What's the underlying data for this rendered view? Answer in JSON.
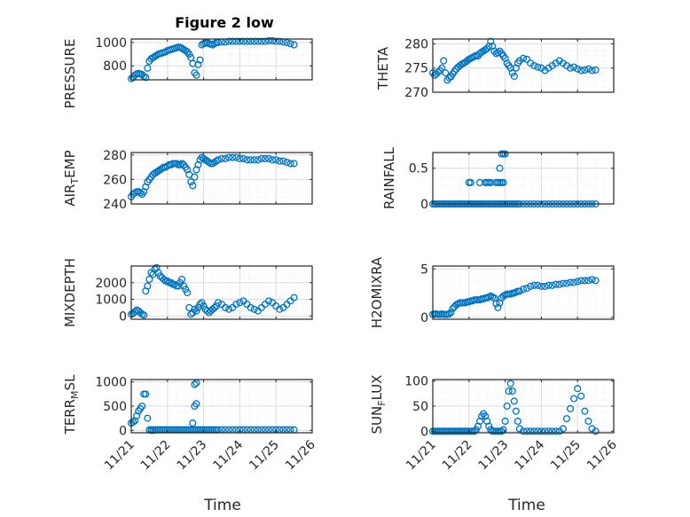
{
  "figure": {
    "title": "Figure 2 low",
    "xlabel": "Time"
  },
  "chart_data": [
    {
      "type": "scatter",
      "title": "Figure 2 low",
      "ylabel": "PRESSURE",
      "ylim": [
        680,
        1030
      ],
      "yticks": [
        "800",
        "1000"
      ],
      "ytick_values": [
        800,
        1000
      ],
      "xlim": [
        0,
        5
      ],
      "grid": true,
      "marker_color": "#0072BD",
      "x": [
        0,
        0.05,
        0.1,
        0.15,
        0.2,
        0.25,
        0.3,
        0.35,
        0.4,
        0.45,
        0.5,
        0.55,
        0.6,
        0.65,
        0.7,
        0.75,
        0.8,
        0.85,
        0.9,
        0.95,
        1.0,
        1.05,
        1.1,
        1.15,
        1.2,
        1.25,
        1.3,
        1.35,
        1.4,
        1.45,
        1.5,
        1.55,
        1.6,
        1.65,
        1.7,
        1.75,
        1.8,
        1.85,
        1.9,
        1.95,
        2.0,
        2.05,
        2.1,
        2.15,
        2.2,
        2.25,
        2.3,
        2.35,
        2.4,
        2.5,
        2.6,
        2.7,
        2.8,
        2.9,
        3.0,
        3.1,
        3.2,
        3.3,
        3.4,
        3.5,
        3.6,
        3.7,
        3.8,
        3.9,
        4.0,
        4.1,
        4.2,
        4.3,
        4.4,
        4.5
      ],
      "y": [
        690,
        700,
        720,
        730,
        735,
        730,
        725,
        710,
        700,
        780,
        840,
        860,
        870,
        880,
        890,
        900,
        905,
        910,
        915,
        920,
        930,
        935,
        940,
        945,
        950,
        955,
        960,
        958,
        950,
        940,
        930,
        920,
        900,
        870,
        820,
        740,
        720,
        810,
        850,
        980,
        990,
        995,
        1000,
        990,
        985,
        980,
        990,
        1000,
        1000,
        1005,
        1005,
        1010,
        1010,
        1010,
        1010,
        1010,
        1010,
        1010,
        1010,
        1010,
        1010,
        1010,
        1015,
        1015,
        1010,
        1010,
        1005,
        1000,
        990,
        980
      ]
    },
    {
      "type": "scatter",
      "ylabel": "THETA",
      "ylim": [
        270,
        281
      ],
      "yticks": [
        "270",
        "275",
        "280"
      ],
      "ytick_values": [
        270,
        275,
        280
      ],
      "xlim": [
        0,
        5
      ],
      "grid": true,
      "marker_color": "#0072BD",
      "x": [
        0,
        0.05,
        0.1,
        0.15,
        0.2,
        0.25,
        0.3,
        0.35,
        0.4,
        0.45,
        0.5,
        0.55,
        0.6,
        0.65,
        0.7,
        0.75,
        0.8,
        0.85,
        0.9,
        0.95,
        1.0,
        1.05,
        1.1,
        1.15,
        1.2,
        1.25,
        1.3,
        1.35,
        1.4,
        1.45,
        1.5,
        1.55,
        1.6,
        1.65,
        1.7,
        1.75,
        1.8,
        1.85,
        1.9,
        1.95,
        2.0,
        2.05,
        2.1,
        2.15,
        2.2,
        2.25,
        2.3,
        2.35,
        2.4,
        2.5,
        2.6,
        2.7,
        2.8,
        2.9,
        3.0,
        3.1,
        3.2,
        3.3,
        3.4,
        3.5,
        3.6,
        3.7,
        3.8,
        3.9,
        4.0,
        4.1,
        4.2,
        4.3,
        4.4,
        4.5
      ],
      "y": [
        274,
        273.5,
        273.8,
        274.2,
        274.5,
        275,
        276.5,
        274,
        272.5,
        273,
        273.2,
        273.8,
        274.3,
        274.8,
        275.2,
        275.5,
        275.8,
        276,
        276.2,
        276.5,
        276.8,
        277,
        277.2,
        277.4,
        277.6,
        277.5,
        278,
        278.3,
        278.5,
        278.8,
        279,
        279.5,
        280.5,
        279.5,
        278.5,
        278,
        278.2,
        278.5,
        278,
        277.5,
        277,
        276,
        275.5,
        275,
        274,
        273.3,
        275,
        276,
        276.5,
        277,
        276.8,
        276,
        275.5,
        275.2,
        275,
        274.5,
        275,
        275.5,
        276,
        276.5,
        276,
        275.5,
        275,
        275.2,
        274.8,
        274.5,
        274.6,
        274.8,
        274.5,
        274.6
      ]
    },
    {
      "type": "scatter",
      "ylabel": "AIR",
      "ylabel_sub": "T",
      "ylabel_tail": "EMP",
      "ylim": [
        240,
        282
      ],
      "yticks": [
        "240",
        "260",
        "280"
      ],
      "ytick_values": [
        240,
        260,
        280
      ],
      "xlim": [
        0,
        5
      ],
      "grid": true,
      "marker_color": "#0072BD",
      "x": [
        0,
        0.05,
        0.1,
        0.15,
        0.2,
        0.25,
        0.3,
        0.35,
        0.4,
        0.45,
        0.5,
        0.55,
        0.6,
        0.65,
        0.7,
        0.75,
        0.8,
        0.85,
        0.9,
        0.95,
        1.0,
        1.05,
        1.1,
        1.15,
        1.2,
        1.25,
        1.3,
        1.35,
        1.4,
        1.45,
        1.5,
        1.55,
        1.6,
        1.65,
        1.7,
        1.75,
        1.8,
        1.85,
        1.9,
        1.95,
        2.0,
        2.05,
        2.1,
        2.15,
        2.2,
        2.25,
        2.3,
        2.35,
        2.4,
        2.5,
        2.6,
        2.7,
        2.8,
        2.9,
        3.0,
        3.1,
        3.2,
        3.3,
        3.4,
        3.5,
        3.6,
        3.7,
        3.8,
        3.9,
        4.0,
        4.1,
        4.2,
        4.3,
        4.4,
        4.5
      ],
      "y": [
        246,
        248,
        249,
        250,
        250,
        249,
        248,
        250,
        254,
        258,
        260,
        262,
        264,
        265,
        266,
        267,
        268,
        269,
        270,
        270,
        271,
        272,
        272,
        273,
        273,
        273,
        272,
        272,
        273,
        272,
        270,
        268,
        264,
        258,
        255,
        262,
        268,
        272,
        276,
        278,
        277,
        276,
        275,
        274,
        273,
        273,
        274,
        275,
        276,
        277,
        277,
        278,
        278,
        278,
        277,
        277,
        276,
        276,
        276,
        276,
        277,
        277,
        277,
        276,
        276,
        275,
        275,
        274,
        273,
        273
      ]
    },
    {
      "type": "scatter",
      "ylabel": "RAINFALL",
      "ylim": [
        0,
        0.72
      ],
      "yticks": [
        "0",
        "0.5"
      ],
      "ytick_values": [
        0,
        0.5
      ],
      "xlim": [
        0,
        5
      ],
      "grid": true,
      "marker_color": "#0072BD",
      "x": [
        0,
        0.05,
        0.1,
        0.15,
        0.2,
        0.25,
        0.3,
        0.35,
        0.4,
        0.45,
        0.5,
        0.55,
        0.6,
        0.65,
        0.7,
        0.75,
        0.8,
        0.85,
        0.9,
        0.95,
        1.0,
        1.05,
        1.1,
        1.15,
        1.2,
        1.25,
        1.3,
        1.35,
        1.4,
        1.45,
        1.5,
        1.55,
        1.6,
        1.65,
        1.7,
        1.75,
        1.8,
        1.85,
        1.9,
        1.95,
        2.0,
        2.05,
        2.1,
        2.15,
        2.2,
        2.25,
        2.3,
        2.35,
        2.4,
        2.5,
        2.6,
        2.7,
        2.8,
        2.9,
        3.0,
        3.1,
        3.2,
        3.3,
        3.4,
        3.5,
        3.6,
        3.7,
        3.8,
        3.9,
        4.0,
        4.1,
        4.2,
        4.3,
        4.4,
        4.5,
        1.0,
        1.05,
        1.3,
        1.45,
        1.5,
        1.55,
        1.6,
        1.75,
        1.8,
        1.85,
        1.85,
        1.9,
        1.95,
        2.0,
        1.95,
        1.9
      ],
      "y": [
        0,
        0,
        0,
        0,
        0,
        0,
        0,
        0,
        0,
        0,
        0,
        0,
        0,
        0,
        0,
        0,
        0,
        0,
        0,
        0,
        0,
        0,
        0,
        0,
        0,
        0,
        0,
        0,
        0,
        0,
        0,
        0,
        0,
        0,
        0,
        0,
        0,
        0,
        0,
        0,
        0,
        0,
        0,
        0,
        0,
        0,
        0,
        0,
        0,
        0,
        0,
        0,
        0,
        0,
        0,
        0,
        0,
        0,
        0,
        0,
        0,
        0,
        0,
        0,
        0,
        0,
        0,
        0,
        0,
        0,
        0.3,
        0.3,
        0.3,
        0.3,
        0.3,
        0.3,
        0.3,
        0.3,
        0.3,
        0.3,
        0.5,
        0.7,
        0.7,
        0.7,
        0.3,
        0.3
      ]
    },
    {
      "type": "scatter",
      "ylabel": "MIXDEPTH",
      "ylim": [
        -200,
        3000
      ],
      "yticks": [
        "0",
        "1000",
        "2000"
      ],
      "ytick_values": [
        0,
        1000,
        2000
      ],
      "xlim": [
        0,
        5
      ],
      "grid": true,
      "marker_color": "#0072BD",
      "x": [
        0,
        0.05,
        0.1,
        0.15,
        0.2,
        0.25,
        0.3,
        0.35,
        0.4,
        0.45,
        0.5,
        0.55,
        0.6,
        0.65,
        0.7,
        0.75,
        0.8,
        0.85,
        0.9,
        0.95,
        1.0,
        1.05,
        1.1,
        1.15,
        1.2,
        1.25,
        1.3,
        1.35,
        1.4,
        1.45,
        1.5,
        1.55,
        1.6,
        1.65,
        1.7,
        1.75,
        1.8,
        1.85,
        1.9,
        1.95,
        2.0,
        2.05,
        2.1,
        2.15,
        2.2,
        2.25,
        2.3,
        2.35,
        2.4,
        2.5,
        2.6,
        2.7,
        2.8,
        2.9,
        3.0,
        3.1,
        3.2,
        3.3,
        3.4,
        3.5,
        3.6,
        3.7,
        3.8,
        3.9,
        4.0,
        4.1,
        4.2,
        4.3,
        4.4,
        4.5
      ],
      "y": [
        100,
        150,
        250,
        350,
        300,
        200,
        100,
        50,
        1500,
        1800,
        2200,
        2600,
        2500,
        2800,
        2900,
        2600,
        2400,
        2300,
        2200,
        2100,
        2100,
        2000,
        2000,
        1900,
        1900,
        1800,
        1800,
        2000,
        2200,
        1800,
        1600,
        1400,
        500,
        100,
        200,
        400,
        300,
        500,
        700,
        800,
        600,
        400,
        300,
        200,
        300,
        400,
        500,
        600,
        800,
        700,
        500,
        400,
        500,
        700,
        800,
        900,
        700,
        500,
        400,
        300,
        500,
        700,
        900,
        800,
        600,
        400,
        500,
        700,
        900,
        1100
      ]
    },
    {
      "type": "scatter",
      "ylabel": "H2OMIXRA",
      "ylim": [
        -0.2,
        5.3
      ],
      "yticks": [
        "0",
        "5"
      ],
      "ytick_values": [
        0,
        5
      ],
      "xlim": [
        0,
        5
      ],
      "grid": true,
      "marker_color": "#0072BD",
      "x": [
        0,
        0.05,
        0.1,
        0.15,
        0.2,
        0.25,
        0.3,
        0.35,
        0.4,
        0.45,
        0.5,
        0.55,
        0.6,
        0.65,
        0.7,
        0.75,
        0.8,
        0.85,
        0.9,
        0.95,
        1.0,
        1.05,
        1.1,
        1.15,
        1.2,
        1.25,
        1.3,
        1.35,
        1.4,
        1.45,
        1.5,
        1.55,
        1.6,
        1.65,
        1.7,
        1.75,
        1.8,
        1.85,
        1.9,
        1.95,
        2.0,
        2.05,
        2.1,
        2.15,
        2.2,
        2.25,
        2.3,
        2.35,
        2.4,
        2.5,
        2.6,
        2.7,
        2.8,
        2.9,
        3.0,
        3.1,
        3.2,
        3.3,
        3.4,
        3.5,
        3.6,
        3.7,
        3.8,
        3.9,
        4.0,
        4.1,
        4.2,
        4.3,
        4.4,
        4.5
      ],
      "y": [
        0.3,
        0.35,
        0.35,
        0.3,
        0.3,
        0.35,
        0.3,
        0.3,
        0.3,
        0.35,
        0.5,
        0.9,
        1.1,
        1.3,
        1.4,
        1.5,
        1.5,
        1.5,
        1.5,
        1.6,
        1.6,
        1.7,
        1.7,
        1.8,
        1.8,
        1.8,
        1.8,
        1.9,
        1.9,
        2.0,
        2.0,
        2.1,
        2.2,
        2.1,
        2.0,
        1.4,
        1.0,
        1.5,
        2.0,
        2.2,
        2.3,
        2.4,
        2.4,
        2.4,
        2.5,
        2.5,
        2.6,
        2.7,
        2.7,
        2.9,
        3.0,
        3.2,
        3.3,
        3.3,
        3.2,
        3.2,
        3.3,
        3.3,
        3.4,
        3.4,
        3.5,
        3.5,
        3.6,
        3.6,
        3.7,
        3.8,
        3.8,
        3.8,
        3.9,
        3.8
      ]
    },
    {
      "type": "scatter",
      "ylabel": "TERR",
      "ylabel_sub": "M",
      "ylabel_tail": "SL",
      "ylim": [
        -50,
        1050
      ],
      "yticks": [
        "0",
        "500",
        "1000"
      ],
      "ytick_values": [
        0,
        500,
        1000
      ],
      "xlim": [
        0,
        5
      ],
      "grid": true,
      "marker_color": "#0072BD",
      "x": [
        0,
        0.05,
        0.1,
        0.15,
        0.2,
        0.25,
        0.3,
        0.35,
        0.4,
        0.45,
        0.5,
        0.55,
        0.6,
        0.65,
        0.7,
        0.75,
        0.8,
        0.85,
        0.9,
        0.95,
        1.0,
        1.05,
        1.1,
        1.15,
        1.2,
        1.25,
        1.3,
        1.35,
        1.4,
        1.45,
        1.5,
        1.55,
        1.6,
        1.65,
        1.7,
        1.75,
        1.8,
        1.85,
        1.9,
        1.95,
        2.0,
        2.05,
        2.1,
        2.15,
        2.2,
        2.25,
        2.3,
        2.35,
        2.4,
        2.5,
        2.6,
        2.7,
        2.8,
        2.9,
        3.0,
        3.1,
        3.2,
        3.3,
        3.4,
        3.5,
        3.6,
        3.7,
        3.8,
        3.9,
        4.0,
        4.1,
        4.2,
        4.3,
        4.4,
        4.5,
        0.55,
        0.6,
        1.7,
        1.75,
        1.8,
        1.75,
        1.8
      ],
      "y": [
        150,
        170,
        200,
        300,
        400,
        450,
        500,
        750,
        750,
        250,
        10,
        10,
        10,
        10,
        10,
        10,
        10,
        10,
        10,
        10,
        10,
        10,
        10,
        10,
        10,
        10,
        10,
        10,
        10,
        10,
        10,
        10,
        10,
        10,
        10,
        10,
        10,
        10,
        10,
        10,
        10,
        10,
        10,
        10,
        10,
        10,
        10,
        10,
        10,
        10,
        10,
        10,
        10,
        10,
        10,
        10,
        10,
        10,
        10,
        10,
        10,
        10,
        10,
        10,
        10,
        10,
        10,
        10,
        10,
        10,
        0,
        0,
        150,
        500,
        550,
        950,
        980
      ]
    },
    {
      "type": "scatter",
      "ylabel": "SUN",
      "ylabel_sub": "F",
      "ylabel_tail": "LUX",
      "ylim": [
        -3,
        103
      ],
      "yticks": [
        "0",
        "50",
        "100"
      ],
      "ytick_values": [
        0,
        50,
        100
      ],
      "xlim": [
        0,
        5
      ],
      "grid": true,
      "marker_color": "#0072BD",
      "x": [
        0,
        0.05,
        0.1,
        0.15,
        0.2,
        0.25,
        0.3,
        0.35,
        0.4,
        0.45,
        0.5,
        0.55,
        0.6,
        0.65,
        0.7,
        0.75,
        0.8,
        0.85,
        0.9,
        0.95,
        1.0,
        1.05,
        1.1,
        1.15,
        1.2,
        1.25,
        1.3,
        1.35,
        1.4,
        1.45,
        1.5,
        1.55,
        1.6,
        1.65,
        1.7,
        1.75,
        1.8,
        1.85,
        1.9,
        1.95,
        2.0,
        2.05,
        2.1,
        2.15,
        2.2,
        2.25,
        2.3,
        2.35,
        2.4,
        2.5,
        2.6,
        2.7,
        2.8,
        2.9,
        3.0,
        3.1,
        3.2,
        3.3,
        3.4,
        3.5,
        3.6,
        3.7,
        3.8,
        3.9,
        4.0,
        4.1,
        4.2,
        4.3,
        4.4,
        4.5
      ],
      "y": [
        0,
        0,
        0,
        0,
        0,
        0,
        0,
        0,
        0,
        0,
        0,
        0,
        0,
        0,
        0,
        0,
        0,
        0,
        0,
        0,
        0,
        0,
        0,
        0,
        3,
        10,
        20,
        30,
        35,
        30,
        20,
        10,
        3,
        0,
        0,
        0,
        0,
        0,
        0,
        3,
        20,
        50,
        80,
        95,
        80,
        60,
        40,
        20,
        5,
        0,
        0,
        0,
        0,
        0,
        0,
        0,
        0,
        0,
        0,
        0,
        5,
        25,
        45,
        65,
        85,
        70,
        40,
        20,
        5,
        0
      ]
    }
  ],
  "shared_x": {
    "xlim": [
      0,
      5
    ],
    "ticks": [
      "11/21",
      "11/22",
      "11/23",
      "11/24",
      "11/25",
      "11/26"
    ],
    "tick_values": [
      0,
      1,
      2,
      3,
      4,
      5
    ]
  }
}
